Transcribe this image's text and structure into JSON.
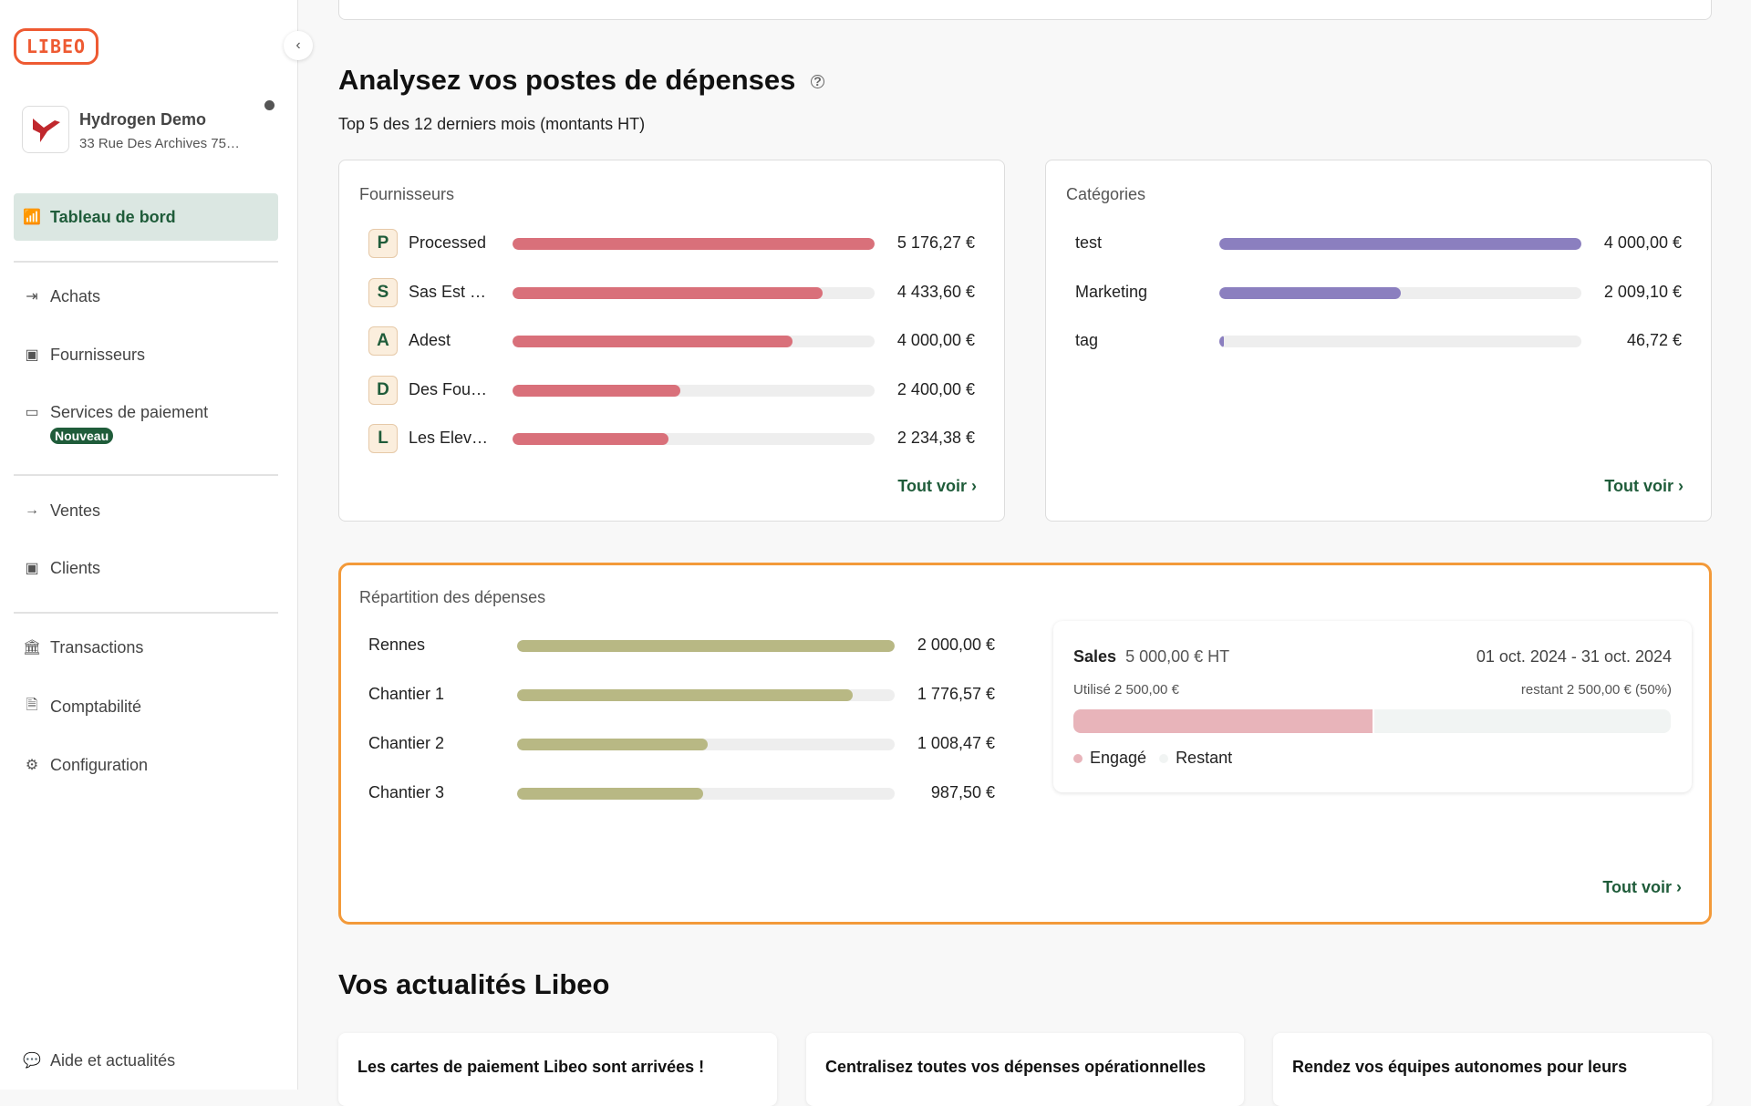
{
  "sidebar": {
    "logo": "LIBEO",
    "company": {
      "name": "Hydrogen Demo",
      "address": "33 Rue Des Archives 75…"
    },
    "items": [
      {
        "label": "Tableau de bord",
        "icon": "chart-icon"
      },
      {
        "label": "Achats",
        "icon": "arrow-out-icon"
      },
      {
        "label": "Fournisseurs",
        "icon": "contact-book-icon"
      },
      {
        "label": "Services de paiement",
        "icon": "credit-card-icon",
        "badge": "Nouveau"
      },
      {
        "label": "Ventes",
        "icon": "arrow-in-icon"
      },
      {
        "label": "Clients",
        "icon": "contact-book-icon"
      },
      {
        "label": "Transactions",
        "icon": "bank-icon"
      },
      {
        "label": "Comptabilité",
        "icon": "document-edit-icon"
      },
      {
        "label": "Configuration",
        "icon": "gear-icon"
      }
    ],
    "help": "Aide et actualités"
  },
  "analysis": {
    "title": "Analysez vos postes de dépenses",
    "subtitle": "Top 5 des 12 derniers mois (montants HT)"
  },
  "suppliers": {
    "title": "Fournisseurs",
    "see_all": "Tout voir",
    "color": "#d9707a",
    "rows": [
      {
        "initial": "P",
        "name": "Processed",
        "value": 5176.27,
        "display": "5 176,27 €"
      },
      {
        "initial": "S",
        "name": "Sas Est …",
        "value": 4433.6,
        "display": "4 433,60 €"
      },
      {
        "initial": "A",
        "name": "Adest",
        "value": 4000.0,
        "display": "4 000,00 €"
      },
      {
        "initial": "D",
        "name": "Des Fou…",
        "value": 2400.0,
        "display": "2 400,00 €"
      },
      {
        "initial": "L",
        "name": "Les Elev…",
        "value": 2234.38,
        "display": "2 234,38 €"
      }
    ]
  },
  "categories": {
    "title": "Catégories",
    "see_all": "Tout voir",
    "color": "#8b7fbf",
    "rows": [
      {
        "name": "test",
        "value": 4000.0,
        "display": "4 000,00 €"
      },
      {
        "name": "Marketing",
        "value": 2009.1,
        "display": "2 009,10 €"
      },
      {
        "name": "tag",
        "value": 46.72,
        "display": "46,72 €"
      }
    ]
  },
  "breakdown": {
    "title": "Répartition des dépenses",
    "see_all": "Tout voir",
    "color": "#b8b884",
    "rows": [
      {
        "name": "Rennes",
        "value": 2000.0,
        "display": "2 000,00 €"
      },
      {
        "name": "Chantier 1",
        "value": 1776.57,
        "display": "1 776,57 €"
      },
      {
        "name": "Chantier 2",
        "value": 1008.47,
        "display": "1 008,47 €"
      },
      {
        "name": "Chantier 3",
        "value": 987.5,
        "display": "987,50 €"
      }
    ],
    "budget": {
      "name": "Sales",
      "amount": "5 000,00 € HT",
      "period": "01 oct. 2024 - 31 oct. 2024",
      "used": "Utilisé 2 500,00 €",
      "remaining": "restant 2 500,00 € (50%)",
      "used_fraction": 0.5,
      "legend": [
        "Engagé",
        "Restant"
      ],
      "engaged_color": "#e8b4ba",
      "remaining_color": "#f1f4f3"
    }
  },
  "news": {
    "title": "Vos actualités Libeo",
    "cards": [
      "Les cartes de paiement Libeo sont arrivées !",
      "Centralisez toutes vos dépenses opérationnelles",
      "Rendez vos équipes autonomes pour leurs"
    ]
  }
}
